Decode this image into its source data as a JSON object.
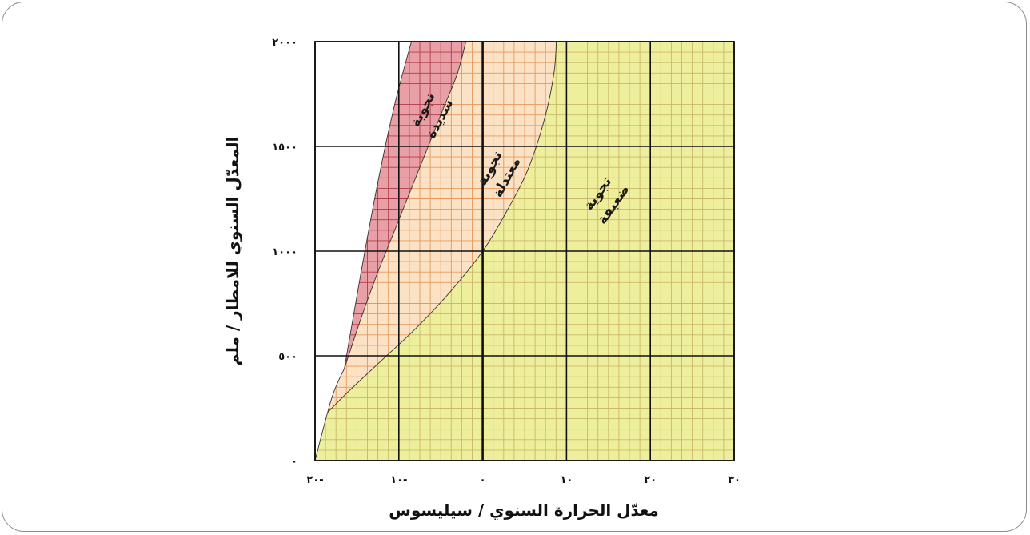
{
  "chart_data": {
    "type": "area",
    "xlabel": "معدّل الحرارة السنوي / سيليسوس",
    "ylabel": "المعدّل السنوي للامطار / ملم",
    "xlim": [
      -20,
      30
    ],
    "ylim": [
      0,
      2000
    ],
    "x_ticks": [
      -20,
      -10,
      0,
      10,
      20,
      30
    ],
    "x_tick_labels": [
      "٢٠-",
      "١٠-",
      "٠",
      "١٠",
      "٢٠",
      "٣٠"
    ],
    "y_ticks": [
      0,
      500,
      1000,
      1500,
      2000
    ],
    "y_tick_labels": [
      "٠",
      "٥٠٠",
      "١٠٠٠",
      "١٥٠٠",
      "٢٠٠٠"
    ],
    "grid": true,
    "boundaries": [
      {
        "id": "strong_left",
        "points": [
          [
            -16.5,
            440
          ],
          [
            -14.5,
            900
          ],
          [
            -12.5,
            1330
          ],
          [
            -10.5,
            1700
          ],
          [
            -8.5,
            2000
          ]
        ]
      },
      {
        "id": "strong_moderate",
        "points": [
          [
            -16.5,
            440
          ],
          [
            -14.5,
            680
          ],
          [
            -12.5,
            900
          ],
          [
            -10.5,
            1100
          ],
          [
            -8.5,
            1300
          ],
          [
            -6.5,
            1500
          ],
          [
            -4.5,
            1700
          ],
          [
            -3.0,
            1850
          ],
          [
            -2.0,
            2000
          ]
        ]
      },
      {
        "id": "moderate_left",
        "points": [
          [
            -20,
            0
          ],
          [
            -18,
            300
          ],
          [
            -16.5,
            440
          ]
        ]
      },
      {
        "id": "moderate_weak",
        "points": [
          [
            -18.5,
            230
          ],
          [
            -16,
            330
          ],
          [
            -12,
            480
          ],
          [
            -8,
            630
          ],
          [
            -4,
            800
          ],
          [
            0,
            1000
          ],
          [
            3,
            1200
          ],
          [
            5.5,
            1400
          ],
          [
            7.5,
            1650
          ],
          [
            8.5,
            1850
          ],
          [
            8.8,
            2000
          ]
        ]
      }
    ],
    "regions": [
      {
        "name": "تجوية شديدة",
        "fill": "#e8a0a6"
      },
      {
        "name": "تجوية معتدلة",
        "fill": "#fbe2c4"
      },
      {
        "name": "تجوية ضعيفة",
        "fill": "#eeef9c"
      }
    ],
    "region_label_lines": [
      [
        "تجوية",
        "شديدة"
      ],
      [
        "تجوية",
        "معتدلة"
      ],
      [
        "تجوية",
        "ضعيفة"
      ]
    ],
    "colors": {
      "major_grid": "#111111",
      "minor_grid_strong": "#b03a48",
      "minor_grid_moderate": "#e49a5c",
      "minor_grid_weak": "#c9b76a",
      "frame": "#8a8a8a"
    }
  }
}
